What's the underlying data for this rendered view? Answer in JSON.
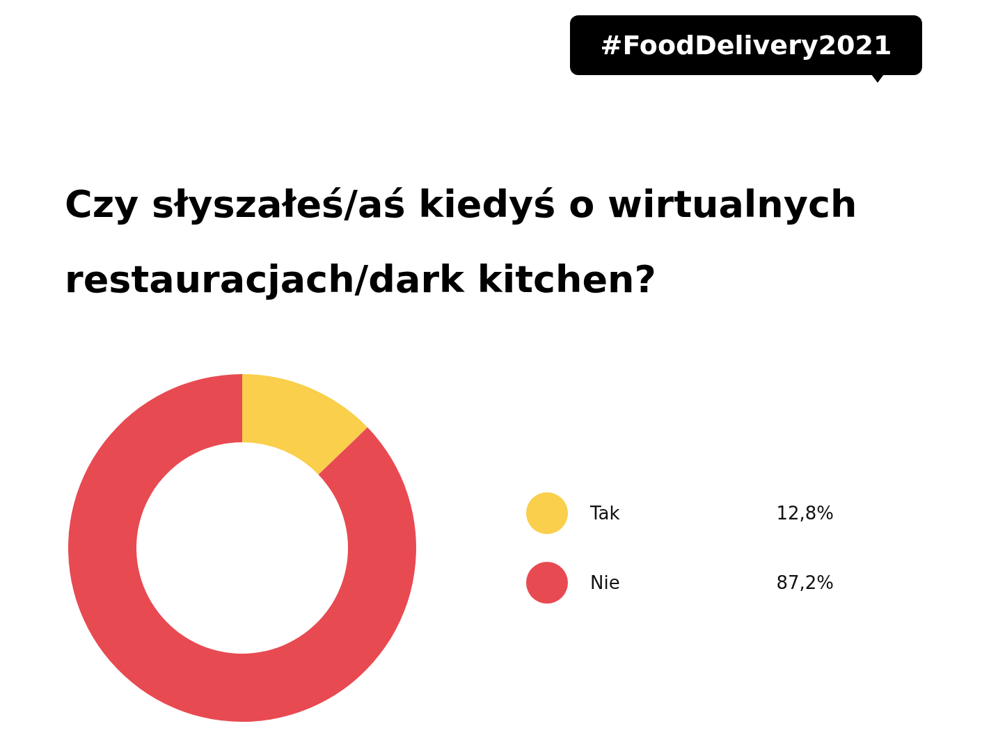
{
  "chart_data": {
    "type": "donut",
    "title": "Czy słyszałeś/aś kiedyś o wirtualnych restauracjach/dark kitchen?",
    "annotations": [
      "#FoodDelivery2021"
    ],
    "categories": [
      "Tak",
      "Nie"
    ],
    "values": [
      12.8,
      87.2
    ],
    "colors": [
      "#f9cf4b",
      "#e84a52"
    ],
    "value_labels": [
      "12,8%",
      "87,2%"
    ],
    "legend": "right"
  }
}
